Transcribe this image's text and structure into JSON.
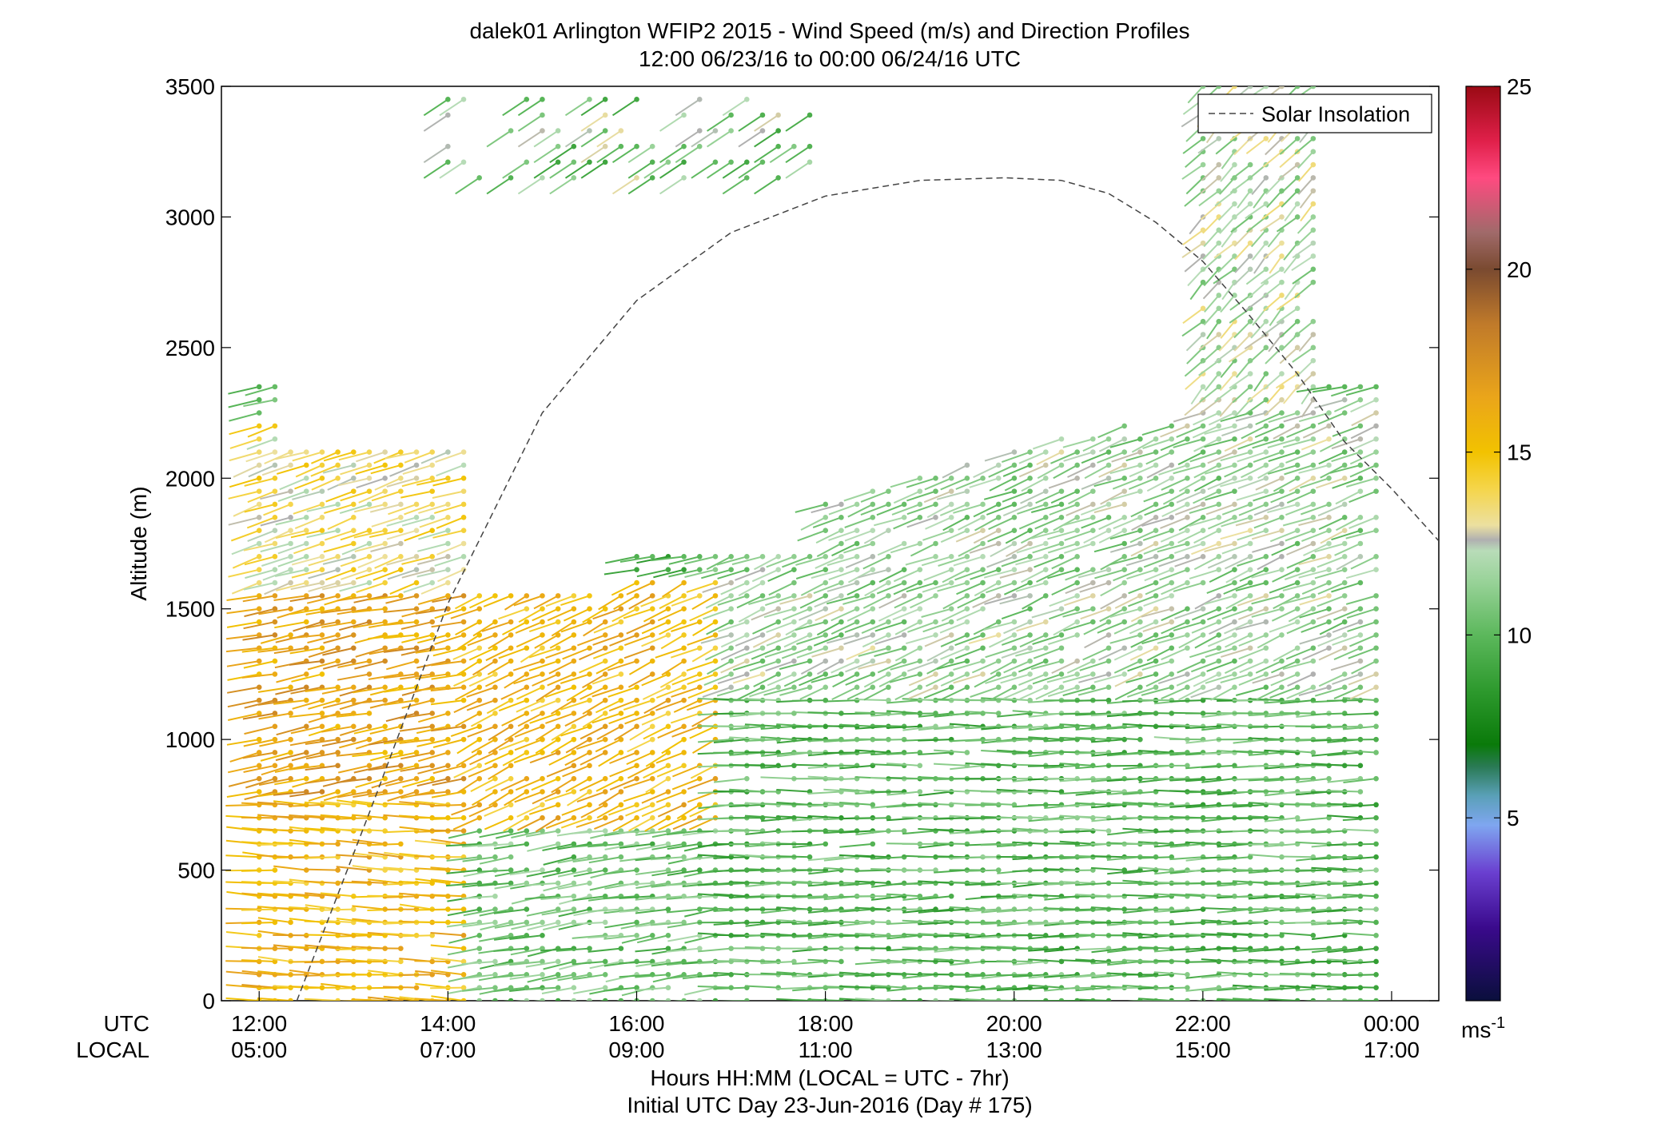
{
  "chart_data": {
    "type": "wind_barb_profile",
    "title": "dalek01 Arlington WFIP2 2015 - Wind Speed (m/s) and Direction Profiles",
    "subtitle": "12:00 06/23/16 to 00:00 06/24/16  UTC",
    "ylabel": "Altitude (m)",
    "xlabel": "Hours HH:MM  (LOCAL = UTC - 7hr)",
    "xlabel2": "Initial UTC Day 23-Jun-2016 (Day # 175)",
    "row_labels": {
      "utc": "UTC",
      "local": "LOCAL"
    },
    "xlim_hours": [
      11.6,
      24.5
    ],
    "ylim": [
      0,
      3500
    ],
    "yticks": [
      {
        "value": 0,
        "label": "0"
      },
      {
        "value": 500,
        "label": "500"
      },
      {
        "value": 1000,
        "label": "1000"
      },
      {
        "value": 1500,
        "label": "1500"
      },
      {
        "value": 2000,
        "label": "2000"
      },
      {
        "value": 2500,
        "label": "2500"
      },
      {
        "value": 3000,
        "label": "3000"
      },
      {
        "value": 3500,
        "label": "3500"
      }
    ],
    "xticks": [
      {
        "hour": 12,
        "utc": "12:00",
        "local": "05:00"
      },
      {
        "hour": 14,
        "utc": "14:00",
        "local": "07:00"
      },
      {
        "hour": 16,
        "utc": "16:00",
        "local": "09:00"
      },
      {
        "hour": 18,
        "utc": "18:00",
        "local": "11:00"
      },
      {
        "hour": 20,
        "utc": "20:00",
        "local": "13:00"
      },
      {
        "hour": 22,
        "utc": "22:00",
        "local": "15:00"
      },
      {
        "hour": 24,
        "utc": "00:00",
        "local": "17:00"
      }
    ],
    "legend": {
      "label": "Solar Insolation",
      "position": "top-right",
      "line_style": "dashed",
      "line_color": "#444444"
    },
    "solar_insolation_curve": {
      "peak_hour": 19.9,
      "peak_altitude": 3150,
      "points": [
        [
          12.4,
          0
        ],
        [
          13.2,
          750
        ],
        [
          14.0,
          1520
        ],
        [
          15.0,
          2250
        ],
        [
          16.0,
          2680
        ],
        [
          17.0,
          2940
        ],
        [
          18.0,
          3080
        ],
        [
          19.0,
          3140
        ],
        [
          19.9,
          3150
        ],
        [
          20.5,
          3140
        ],
        [
          21.0,
          3090
        ],
        [
          21.5,
          2980
        ],
        [
          22.0,
          2830
        ],
        [
          22.5,
          2620
        ],
        [
          23.0,
          2400
        ],
        [
          23.5,
          2140
        ],
        [
          24.0,
          1960
        ],
        [
          24.5,
          1760
        ]
      ]
    },
    "colorbar": {
      "label": "ms",
      "label_sup": "-1",
      "range": [
        0,
        25
      ],
      "ticks": [
        {
          "value": 5,
          "label": "5"
        },
        {
          "value": 10,
          "label": "10"
        },
        {
          "value": 15,
          "label": "15"
        },
        {
          "value": 20,
          "label": "20"
        },
        {
          "value": 25,
          "label": "25"
        }
      ],
      "stops": [
        {
          "value": 0,
          "color": "#0a0f3c"
        },
        {
          "value": 2,
          "color": "#3a0a8c"
        },
        {
          "value": 3.5,
          "color": "#6a3fd0"
        },
        {
          "value": 4.8,
          "color": "#7fa6f0"
        },
        {
          "value": 5.6,
          "color": "#5aa0b8"
        },
        {
          "value": 6.4,
          "color": "#2a7a55"
        },
        {
          "value": 7.0,
          "color": "#0a7a0a"
        },
        {
          "value": 8.5,
          "color": "#2e9a2e"
        },
        {
          "value": 10,
          "color": "#5cb85c"
        },
        {
          "value": 11.5,
          "color": "#9ad39a"
        },
        {
          "value": 12.3,
          "color": "#b8dcb8"
        },
        {
          "value": 12.6,
          "color": "#b0b0b0"
        },
        {
          "value": 13.0,
          "color": "#ece0a0"
        },
        {
          "value": 14,
          "color": "#f5d54a"
        },
        {
          "value": 15,
          "color": "#f2c200"
        },
        {
          "value": 16.5,
          "color": "#eaa51a"
        },
        {
          "value": 18.5,
          "color": "#c07a2a"
        },
        {
          "value": 20,
          "color": "#7a4a30"
        },
        {
          "value": 21,
          "color": "#a06a6a"
        },
        {
          "value": 22.5,
          "color": "#ff4a80"
        },
        {
          "value": 23.5,
          "color": "#e0204a"
        },
        {
          "value": 25,
          "color": "#9a0a14"
        }
      ]
    },
    "wind_profile_sampling": {
      "time_start_hour": 12.0,
      "time_end_hour": 24.0,
      "time_step_hours": 0.1667,
      "altitude_step_m": 50,
      "max_altitude_m": 3500
    },
    "wind_speed_regimes": [
      {
        "hours": [
          12.0,
          14.2
        ],
        "altitudes": [
          0,
          800
        ],
        "speed_ms": 15.5,
        "direction_deg": 275
      },
      {
        "hours": [
          12.0,
          14.2
        ],
        "altitudes": [
          800,
          1600
        ],
        "speed_ms": 16.5,
        "direction_deg": 250
      },
      {
        "hours": [
          12.0,
          14.2
        ],
        "altitudes": [
          1600,
          2200
        ],
        "speed_ms": 13.5,
        "direction_deg": 240
      },
      {
        "hours": [
          14.2,
          17.0
        ],
        "altitudes": [
          0,
          700
        ],
        "speed_ms": 10.5,
        "direction_deg": 255
      },
      {
        "hours": [
          14.2,
          17.0
        ],
        "altitudes": [
          700,
          1600
        ],
        "speed_ms": 15.5,
        "direction_deg": 230
      },
      {
        "hours": [
          17.0,
          24.0
        ],
        "altitudes": [
          0,
          1200
        ],
        "speed_ms": 10.0,
        "direction_deg": 268
      },
      {
        "hours": [
          17.0,
          24.0
        ],
        "altitudes": [
          1200,
          2300
        ],
        "speed_ms": 11.5,
        "direction_deg": 235
      },
      {
        "hours": [
          21.8,
          23.3
        ],
        "altitudes": [
          2300,
          3500
        ],
        "speed_ms": 12.0,
        "direction_deg": 210
      },
      {
        "hours": [
          14.0,
          18.0
        ],
        "altitudes": [
          3200,
          3500
        ],
        "speed_ms": 9.5,
        "direction_deg": 220
      }
    ]
  }
}
